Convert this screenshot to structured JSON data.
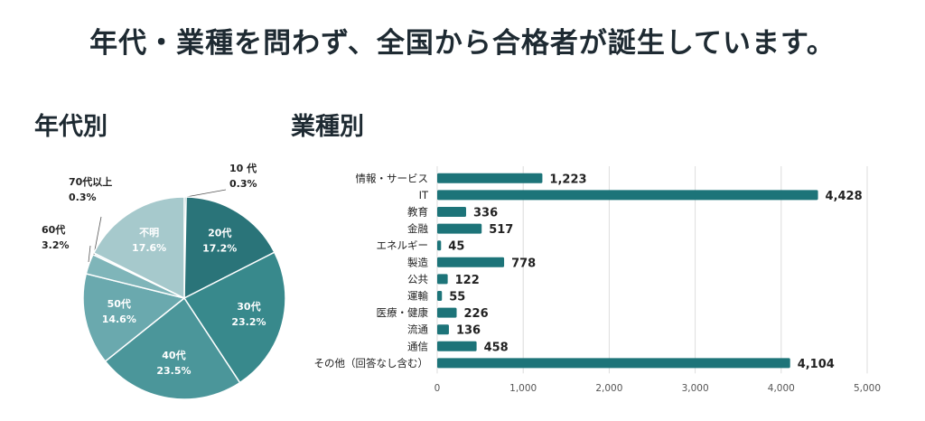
{
  "headline": "年代・業種を問わず、全国から合格者が誕生しています。",
  "colors": {
    "bar": "#1d7479",
    "grid": "#dcdcdc",
    "pie": [
      "#2e7b80",
      "#2a7479",
      "#38898c",
      "#4b969a",
      "#6aa9ae",
      "#7fb5b9",
      "#d7e9ea",
      "#a6c9cc"
    ]
  },
  "chart_data": [
    {
      "type": "pie",
      "title": "年代別",
      "slices": [
        {
          "label": "10 代",
          "value": 0.3
        },
        {
          "label": "20代",
          "value": 17.2
        },
        {
          "label": "30代",
          "value": 23.2
        },
        {
          "label": "40代",
          "value": 23.5
        },
        {
          "label": "50代",
          "value": 14.6
        },
        {
          "label": "60代",
          "value": 3.2
        },
        {
          "label": "70代以上",
          "value": 0.3
        },
        {
          "label": "不明",
          "value": 17.6
        }
      ],
      "value_suffix": "%"
    },
    {
      "type": "bar",
      "orientation": "horizontal",
      "title": "業種別",
      "categories": [
        "情報・サービス",
        "IT",
        "教育",
        "金融",
        "エネルギー",
        "製造",
        "公共",
        "運輸",
        "医療・健康",
        "流通",
        "通信",
        "その他（回答なし含む）"
      ],
      "values": [
        1223,
        4428,
        336,
        517,
        45,
        778,
        122,
        55,
        226,
        136,
        458,
        4104
      ],
      "value_labels": [
        "1,223",
        "4,428",
        "336",
        "517",
        "45",
        "778",
        "122",
        "55",
        "226",
        "136",
        "458",
        "4,104"
      ],
      "xlim": [
        0,
        5000
      ],
      "xticks": [
        0,
        1000,
        2000,
        3000,
        4000,
        5000
      ],
      "xtick_labels": [
        "0",
        "1,000",
        "2,000",
        "3,000",
        "4,000",
        "5,000"
      ],
      "grid": true
    }
  ]
}
